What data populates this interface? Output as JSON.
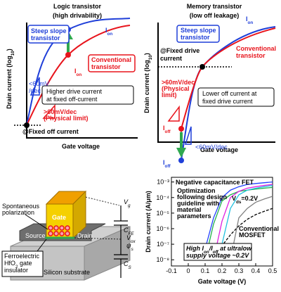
{
  "panels": {
    "logic": {
      "title": [
        "Logic transistor",
        "(high drivability)"
      ],
      "y_label": {
        "text": "Drain current (log",
        "sub": "10",
        "end": ")"
      },
      "x_label": "Gate voltage",
      "steep": [
        "Steep slope",
        "transistor"
      ],
      "ion_steep": {
        "text": "I",
        "sub": "on"
      },
      "conventional": [
        "Conventional",
        "transistor"
      ],
      "ion_conv": {
        "text": "I",
        "sub": "on"
      },
      "slope_steep": [
        "<60mV",
        "/dec"
      ],
      "message": [
        "Higher drive current",
        "at fixed off-current"
      ],
      "slope_conv": [
        ">60mV/dec",
        "(Physical limit)"
      ],
      "fixed": "@Fixed off current"
    },
    "memory": {
      "title": [
        "Memory transistor",
        "(low off leakage)"
      ],
      "y_label": {
        "text": "Drain current (log",
        "sub": "10",
        "end": ")"
      },
      "x_label": "Gate voltage",
      "steep": [
        "Steep slope",
        "transistor"
      ],
      "ion": {
        "text": "I",
        "sub": "on"
      },
      "conventional": [
        "Conventional",
        "transistor"
      ],
      "fixed": [
        "@Fixed drive",
        "current"
      ],
      "slope_conv": [
        ">60mV/dec",
        "(Physical",
        "limit)"
      ],
      "message": [
        "Lower off current at",
        "fixed drive current"
      ],
      "ioff_conv": {
        "text": "I",
        "sub": "off"
      },
      "slope_steep": "<60mV/dec",
      "ioff_steep": {
        "text": "I",
        "sub": "off"
      }
    },
    "device": {
      "polarization": [
        "Spontaneous",
        "polarization"
      ],
      "gate": "Gate",
      "source": "Source",
      "drain": "Drain",
      "substrate": "Silicon substrate",
      "insulator": [
        "Ferroelectric",
        {
          "text": "HfO",
          "sub": "2",
          "end": " gate"
        },
        "insulator"
      ],
      "vg": {
        "text": "V",
        "sub": "g"
      },
      "cfe": {
        "text": "C",
        "sub": "FE"
      },
      "vox": {
        "text": "V",
        "sub": "ox"
      },
      "psis": {
        "text": "ψ",
        "sub": "s"
      },
      "cs": {
        "text": "C",
        "sub": "S"
      }
    }
  },
  "chart_data": {
    "type": "line",
    "log_y": true,
    "x_label": "Gate voltage (V)",
    "y_label": "Drain current (A/μm)",
    "xlim": [
      -0.1,
      0.5
    ],
    "xticks": [
      -0.1,
      0,
      0.1,
      0.2,
      0.3,
      0.4,
      0.5
    ],
    "ylim": [
      4e-09,
      0.002
    ],
    "yticks": [
      {
        "value": 1e-08,
        "label": "10⁻⁸"
      },
      {
        "value": 1e-07,
        "label": "10⁻⁷"
      },
      {
        "value": 1e-06,
        "label": "10⁻⁶"
      },
      {
        "value": 1e-05,
        "label": "10⁻⁵"
      },
      {
        "value": 0.0001,
        "label": "10⁻⁴"
      },
      {
        "value": 0.001,
        "label": "10⁻³"
      }
    ],
    "x": [
      -0.1,
      -0.05,
      0,
      0.05,
      0.1,
      0.15,
      0.2,
      0.25,
      0.3,
      0.35,
      0.4,
      0.45,
      0.5
    ],
    "series": [
      {
        "color": "#000000",
        "style": "dashed",
        "values": [
          null,
          null,
          null,
          null,
          null,
          1.5e-08,
          8e-08,
          4e-07,
          1.5e-06,
          4e-06,
          8e-06,
          1.3e-05,
          2e-05
        ]
      },
      {
        "color": "#22b14c",
        "values": [
          null,
          null,
          null,
          null,
          1e-08,
          2e-06,
          6e-05,
          0.00015,
          0.00025,
          0.0003,
          0.00035,
          0.0004,
          0.00045
        ]
      },
      {
        "color": "#e020e0",
        "values": [
          null,
          null,
          null,
          null,
          null,
          1e-08,
          3e-06,
          0.0001,
          0.00025,
          0.0004,
          0.0005,
          0.0006,
          0.0007
        ]
      },
      {
        "color": "#2040ff",
        "values": [
          null,
          null,
          null,
          null,
          5e-08,
          5e-06,
          0.0001,
          0.0003,
          0.0005,
          0.0007,
          0.0008,
          0.0009,
          0.001
        ]
      },
      {
        "color": "#20c0e0",
        "values": [
          null,
          null,
          null,
          null,
          null,
          null,
          1e-07,
          2e-05,
          0.00015,
          0.0003,
          0.0004,
          0.0005,
          0.0006
        ]
      },
      {
        "color": "#808080",
        "values": [
          null,
          null,
          null,
          null,
          null,
          null,
          null,
          1e-08,
          5e-06,
          2e-05,
          5e-05,
          8e-05,
          0.00012
        ]
      }
    ],
    "annotations": {
      "ncfet": "Negative capacitance FET",
      "optimization": [
        "Optimization",
        "following design",
        "guideline with",
        "material",
        "parameters"
      ],
      "vds": {
        "text": "V",
        "sub": "ds",
        "end": "=0.2V"
      },
      "conventional": [
        "Conventional",
        "MOSFET"
      ],
      "high": [
        {
          "text": "High I",
          "sub": "on",
          "end": "/I",
          "sub2": "off",
          "end2": " at ultralow"
        },
        "supply voltage ~0.2V"
      ]
    }
  }
}
